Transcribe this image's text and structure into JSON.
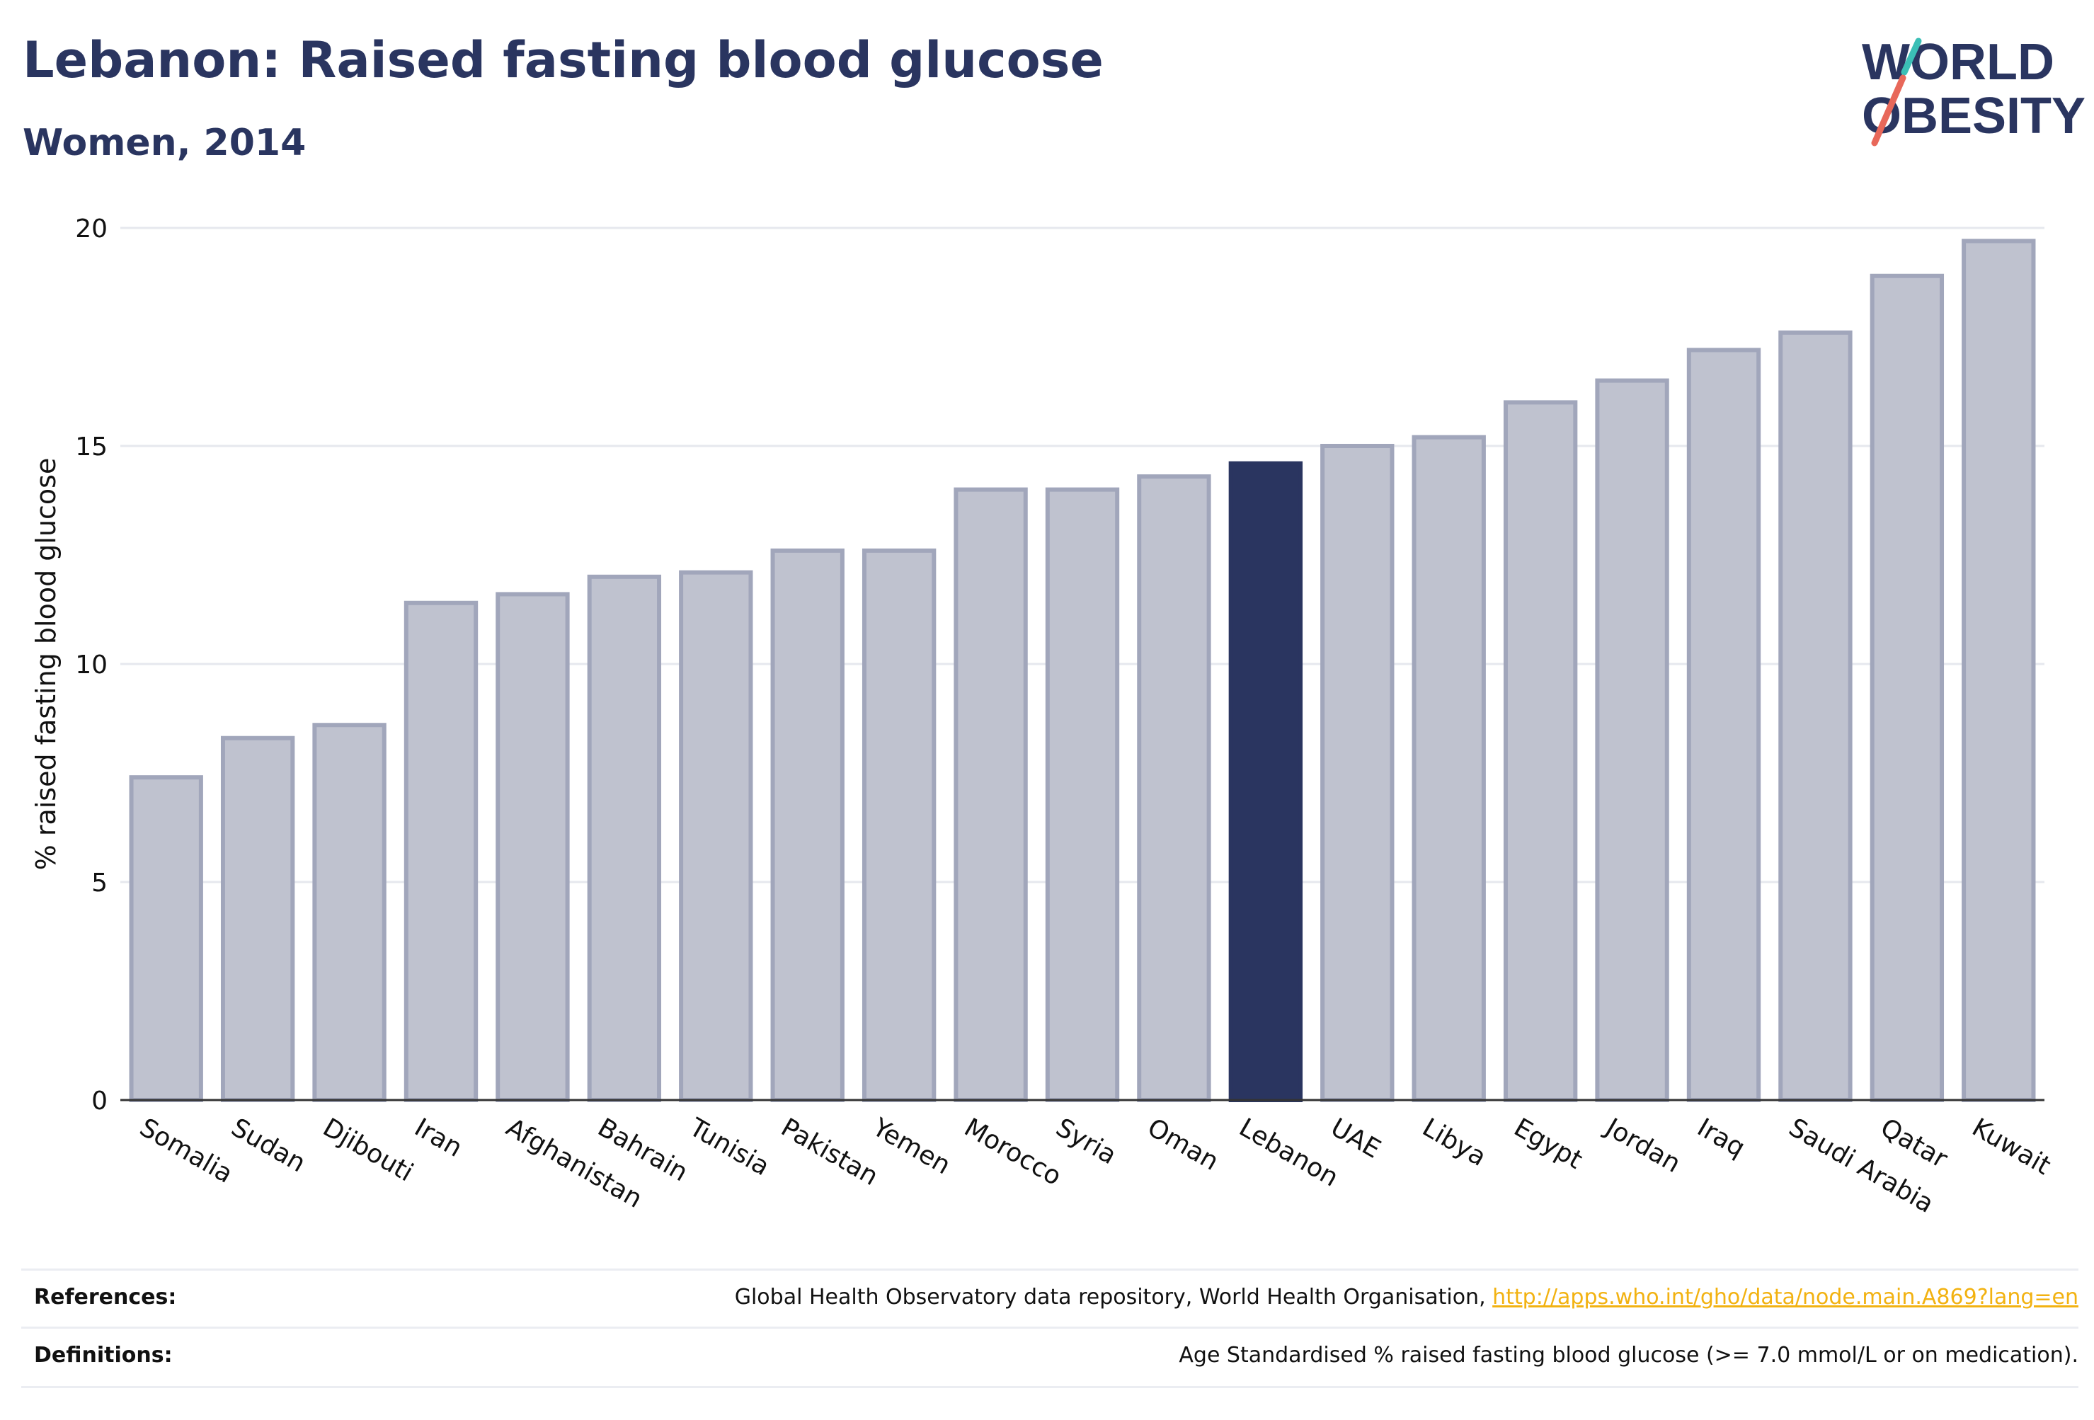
{
  "header": {
    "title": "Lebanon: Raised fasting blood glucose",
    "subtitle": "Women, 2014"
  },
  "logo": {
    "line1": "WORLD",
    "line2": "OBESITY",
    "slash_teal": "#3bbfb6",
    "slash_red": "#e8685a"
  },
  "chart_data": {
    "type": "bar",
    "ylabel": "% raised fasting blood glucose",
    "xlabel": "",
    "ylim": [
      0,
      20
    ],
    "yticks": [
      0,
      5,
      10,
      15,
      20
    ],
    "grid": true,
    "highlight": "Lebanon",
    "colors": {
      "bar": "#bfc2cf",
      "bar_border": "#a1a6bb",
      "highlight": "#2a3560"
    },
    "categories": [
      "Somalia",
      "Sudan",
      "Djibouti",
      "Iran",
      "Afghanistan",
      "Bahrain",
      "Tunisia",
      "Pakistan",
      "Yemen",
      "Morocco",
      "Syria",
      "Oman",
      "Lebanon",
      "UAE",
      "Libya",
      "Egypt",
      "Jordan",
      "Iraq",
      "Saudi Arabia",
      "Qatar",
      "Kuwait"
    ],
    "values": [
      7.4,
      8.3,
      8.6,
      11.4,
      11.6,
      12.0,
      12.1,
      12.6,
      12.6,
      14.0,
      14.0,
      14.3,
      14.6,
      15.0,
      15.2,
      16.0,
      16.5,
      17.2,
      17.6,
      18.9,
      19.7
    ]
  },
  "footer": {
    "references_label": "References:",
    "references_text": "Global Health Observatory data repository, World Health Organisation, ",
    "references_link": "http://apps.who.int/gho/data/node.main.A869?lang=en",
    "definitions_label": "Definitions:",
    "definitions_text": "Age Standardised % raised fasting blood glucose (>= 7.0 mmol/L or on medication)."
  }
}
